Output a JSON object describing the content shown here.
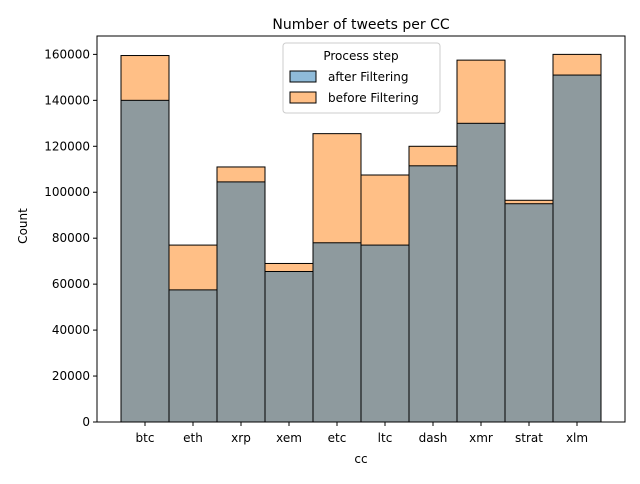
{
  "chart_data": {
    "type": "bar",
    "title": "Number of tweets per CC",
    "xlabel": "cc",
    "ylabel": "Count",
    "categories": [
      "btc",
      "eth",
      "xrp",
      "xem",
      "etc",
      "ltc",
      "dash",
      "xmr",
      "strat",
      "xlm"
    ],
    "series": [
      {
        "name": "after Filtering",
        "color": "#1f77b4",
        "values": [
          140000,
          57500,
          104500,
          65500,
          78000,
          77000,
          111500,
          130000,
          95000,
          151000
        ]
      },
      {
        "name": "before Filtering",
        "color": "#ff7f0e",
        "values": [
          159500,
          77000,
          111000,
          69000,
          125500,
          107500,
          120000,
          157500,
          96500,
          160000
        ]
      }
    ],
    "overlap_color": "#8e9a9e",
    "ylim": [
      0,
      168000
    ],
    "yticks": [
      0,
      20000,
      40000,
      60000,
      80000,
      100000,
      120000,
      140000,
      160000
    ],
    "grid": false,
    "legend": {
      "title": "Process step",
      "placement": "top-center"
    }
  }
}
